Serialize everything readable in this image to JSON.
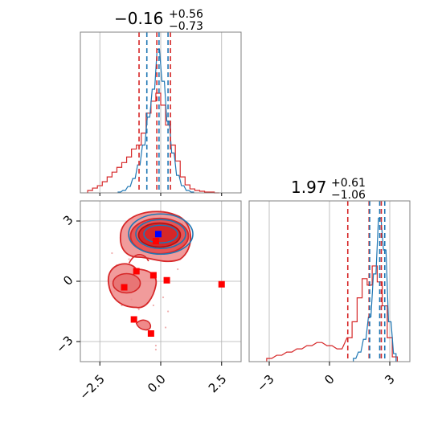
{
  "colors": {
    "blue": "#1f77b4",
    "red": "#d62728",
    "red_fill": "#ef8a8a",
    "grid": "#b0b0b0",
    "axis": "#808080",
    "blue_marker": "#0000ff",
    "red_marker": "#ff0000"
  },
  "chart_data": {
    "type": "corner-plot",
    "grid": true,
    "panels": [
      {
        "id": "marginal-param-1",
        "type": "histogram",
        "title": {
          "median": "−0.16",
          "plus": "+0.56",
          "minus": "−0.73"
        },
        "xlim": [
          -3.3,
          3.3
        ],
        "x_ticks": [
          -2.5,
          0.0,
          2.5
        ],
        "blue_quantiles": [
          -0.57,
          -0.07,
          0.3
        ],
        "red_quantiles": [
          -0.89,
          -0.16,
          0.4
        ],
        "blue_hist": {
          "bin_centers": [
            -1.7,
            -1.5,
            -1.3,
            -1.1,
            -0.9,
            -0.7,
            -0.5,
            -0.3,
            -0.1,
            0.1,
            0.3,
            0.5,
            0.7,
            0.9,
            1.1,
            1.3
          ],
          "counts": [
            1,
            3,
            8,
            18,
            35,
            60,
            95,
            130,
            180,
            140,
            90,
            50,
            22,
            9,
            3,
            1
          ]
        },
        "red_hist": {
          "bin_centers": [
            -2.9,
            -2.7,
            -2.5,
            -2.3,
            -2.1,
            -1.9,
            -1.7,
            -1.5,
            -1.3,
            -1.1,
            -0.9,
            -0.7,
            -0.5,
            -0.3,
            -0.1,
            0.1,
            0.3,
            0.5,
            0.7,
            0.9,
            1.1,
            1.3,
            1.5,
            1.7,
            1.9,
            2.1,
            2.3
          ],
          "counts": [
            3,
            6,
            9,
            14,
            20,
            26,
            32,
            38,
            45,
            55,
            60,
            75,
            100,
            115,
            125,
            110,
            85,
            60,
            40,
            20,
            10,
            5,
            3,
            2,
            1,
            1,
            0
          ]
        }
      },
      {
        "id": "joint-param-1-param-2",
        "type": "2d-contour",
        "xlim": [
          -3.3,
          3.3
        ],
        "ylim": [
          -4.0,
          4.0
        ],
        "x_ticks": [
          -2.5,
          0.0,
          2.5
        ],
        "y_ticks": [
          -3,
          0,
          3
        ],
        "blue_point": {
          "x": -0.1,
          "y": 2.35
        },
        "red_squares": [
          {
            "x": -0.2,
            "y": 2.0
          },
          {
            "x": -1.0,
            "y": 0.5
          },
          {
            "x": -0.3,
            "y": 0.3
          },
          {
            "x": 0.25,
            "y": 0.05
          },
          {
            "x": -1.5,
            "y": -0.3
          },
          {
            "x": 2.5,
            "y": -0.15
          },
          {
            "x": -1.1,
            "y": -1.9
          },
          {
            "x": -0.4,
            "y": -2.6
          }
        ]
      },
      {
        "id": "marginal-param-2",
        "type": "histogram",
        "title": {
          "median": "1.97",
          "plus": "+0.61",
          "minus": "−1.06"
        },
        "xlim": [
          -4.0,
          4.0
        ],
        "x_ticks": [
          -3,
          0,
          3
        ],
        "blue_quantiles": [
          2.0,
          2.5,
          2.75
        ],
        "red_quantiles": [
          0.91,
          1.97,
          2.58
        ],
        "blue_hist": {
          "bin_centers": [
            1.25,
            1.5,
            1.75,
            2.0,
            2.25,
            2.5,
            2.75,
            3.0,
            3.25
          ],
          "counts": [
            2,
            6,
            14,
            28,
            55,
            90,
            70,
            25,
            5
          ]
        },
        "red_hist": {
          "bin_centers": [
            -3.0,
            -2.5,
            -2.0,
            -1.5,
            -1.0,
            -0.5,
            0.0,
            0.5,
            1.0,
            1.25,
            1.5,
            1.75,
            2.0,
            2.25,
            2.5,
            2.75,
            3.0,
            3.25
          ],
          "counts": [
            2,
            4,
            6,
            8,
            10,
            12,
            10,
            8,
            15,
            25,
            40,
            52,
            48,
            60,
            50,
            35,
            15,
            3
          ]
        }
      }
    ],
    "tick_labels": {
      "p1_x": [
        "−2.5",
        "0.0",
        "2.5"
      ],
      "p2_y": [
        "−3",
        "0",
        "3"
      ],
      "p3_x": [
        "−3",
        "0",
        "3"
      ]
    }
  }
}
